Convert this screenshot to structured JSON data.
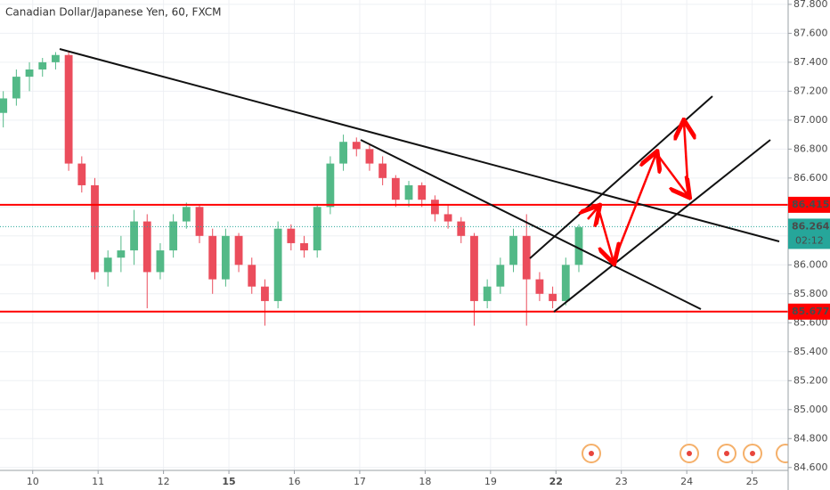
{
  "chart_data": {
    "type": "candlestick",
    "title": "Canadian Dollar/Japanese Yen, 60, FXCM",
    "up_color": "#53b987",
    "down_color": "#eb4d5c",
    "grid": true,
    "xlim": [
      -0.5,
      11.55
    ],
    "ylim": [
      84.58,
      87.83
    ],
    "xticks": [
      {
        "value": 0,
        "label": "10"
      },
      {
        "value": 1,
        "label": "11"
      },
      {
        "value": 2,
        "label": "12"
      },
      {
        "value": 3,
        "label": "15"
      },
      {
        "value": 4,
        "label": "16"
      },
      {
        "value": 5,
        "label": "17"
      },
      {
        "value": 6,
        "label": "18"
      },
      {
        "value": 7,
        "label": "19"
      },
      {
        "value": 8,
        "label": "22"
      },
      {
        "value": 9,
        "label": "23"
      },
      {
        "value": 10,
        "label": "24"
      },
      {
        "value": 11,
        "label": "25"
      }
    ],
    "yticks": [
      {
        "value": 84.6,
        "label": "84.600"
      },
      {
        "value": 84.8,
        "label": "84.800"
      },
      {
        "value": 85.0,
        "label": "85.000"
      },
      {
        "value": 85.2,
        "label": "85.200"
      },
      {
        "value": 85.4,
        "label": "85.400"
      },
      {
        "value": 85.6,
        "label": "85.600"
      },
      {
        "value": 85.8,
        "label": "85.800"
      },
      {
        "value": 86.0,
        "label": "86.000"
      },
      {
        "value": 86.2,
        "label": "86.200"
      },
      {
        "value": 86.4,
        "label": "86.400"
      },
      {
        "value": 86.6,
        "label": "86.600"
      },
      {
        "value": 86.8,
        "label": "86.800"
      },
      {
        "value": 87.0,
        "label": "87.000"
      },
      {
        "value": 87.2,
        "label": "87.200"
      },
      {
        "value": 87.4,
        "label": "87.400"
      },
      {
        "value": 87.6,
        "label": "87.600"
      },
      {
        "value": 87.8,
        "label": "87.800"
      }
    ],
    "x": [
      -0.45,
      -0.25,
      -0.05,
      0.15,
      0.35,
      0.55,
      0.75,
      0.95,
      1.15,
      1.35,
      1.55,
      1.75,
      1.95,
      2.15,
      2.35,
      2.55,
      2.75,
      2.95,
      3.15,
      3.35,
      3.55,
      3.75,
      3.95,
      4.15,
      4.35,
      4.55,
      4.75,
      4.95,
      5.15,
      5.35,
      5.55,
      5.75,
      5.95,
      6.15,
      6.35,
      6.55,
      6.75,
      6.95,
      7.15,
      7.35,
      7.55,
      7.75,
      7.95,
      8.15,
      8.35
    ],
    "open": [
      87.05,
      87.15,
      87.3,
      87.35,
      87.4,
      87.45,
      86.7,
      86.55,
      85.95,
      86.05,
      86.1,
      86.3,
      85.95,
      86.1,
      86.3,
      86.4,
      86.2,
      85.9,
      86.2,
      86.0,
      85.85,
      85.75,
      86.25,
      86.15,
      86.1,
      86.4,
      86.7,
      86.85,
      86.8,
      86.7,
      86.6,
      86.45,
      86.55,
      86.45,
      86.35,
      86.3,
      86.2,
      85.75,
      85.85,
      86.0,
      86.2,
      85.9,
      85.8,
      85.75,
      86.0
    ],
    "high": [
      87.2,
      87.35,
      87.4,
      87.43,
      87.47,
      87.48,
      86.75,
      86.6,
      86.1,
      86.2,
      86.38,
      86.35,
      86.15,
      86.35,
      86.43,
      86.42,
      86.25,
      86.25,
      86.22,
      86.05,
      85.9,
      86.3,
      86.28,
      86.2,
      86.42,
      86.75,
      86.9,
      86.88,
      86.83,
      86.75,
      86.62,
      86.58,
      86.57,
      86.48,
      86.42,
      86.33,
      86.22,
      85.9,
      86.05,
      86.25,
      86.35,
      85.95,
      85.85,
      86.05,
      86.28
    ],
    "low": [
      86.95,
      87.1,
      87.2,
      87.3,
      87.35,
      86.65,
      86.5,
      85.9,
      85.85,
      85.95,
      86.0,
      85.7,
      85.9,
      86.05,
      86.25,
      86.15,
      85.8,
      85.85,
      85.95,
      85.8,
      85.58,
      85.7,
      86.1,
      86.05,
      86.05,
      86.35,
      86.65,
      86.75,
      86.65,
      86.55,
      86.4,
      86.4,
      86.4,
      86.3,
      86.25,
      86.15,
      85.58,
      85.7,
      85.8,
      85.95,
      85.58,
      85.75,
      85.7,
      85.72,
      85.95
    ],
    "close": [
      87.15,
      87.3,
      87.35,
      87.4,
      87.45,
      86.7,
      86.55,
      85.95,
      86.05,
      86.1,
      86.3,
      85.95,
      86.1,
      86.3,
      86.4,
      86.2,
      85.9,
      86.2,
      86.0,
      85.85,
      85.75,
      86.25,
      86.15,
      86.1,
      86.4,
      86.7,
      86.85,
      86.8,
      86.7,
      86.6,
      86.45,
      86.55,
      86.45,
      86.35,
      86.3,
      86.2,
      85.75,
      85.85,
      86.0,
      86.2,
      85.9,
      85.8,
      85.75,
      86.0,
      86.26
    ],
    "levels": [
      {
        "value": 86.415,
        "color": "#ff0000"
      },
      {
        "value": 85.677,
        "color": "#ff0000"
      }
    ],
    "last_price": 86.264,
    "last_price_color": "#26a69a",
    "countdown": "02:12"
  }
}
